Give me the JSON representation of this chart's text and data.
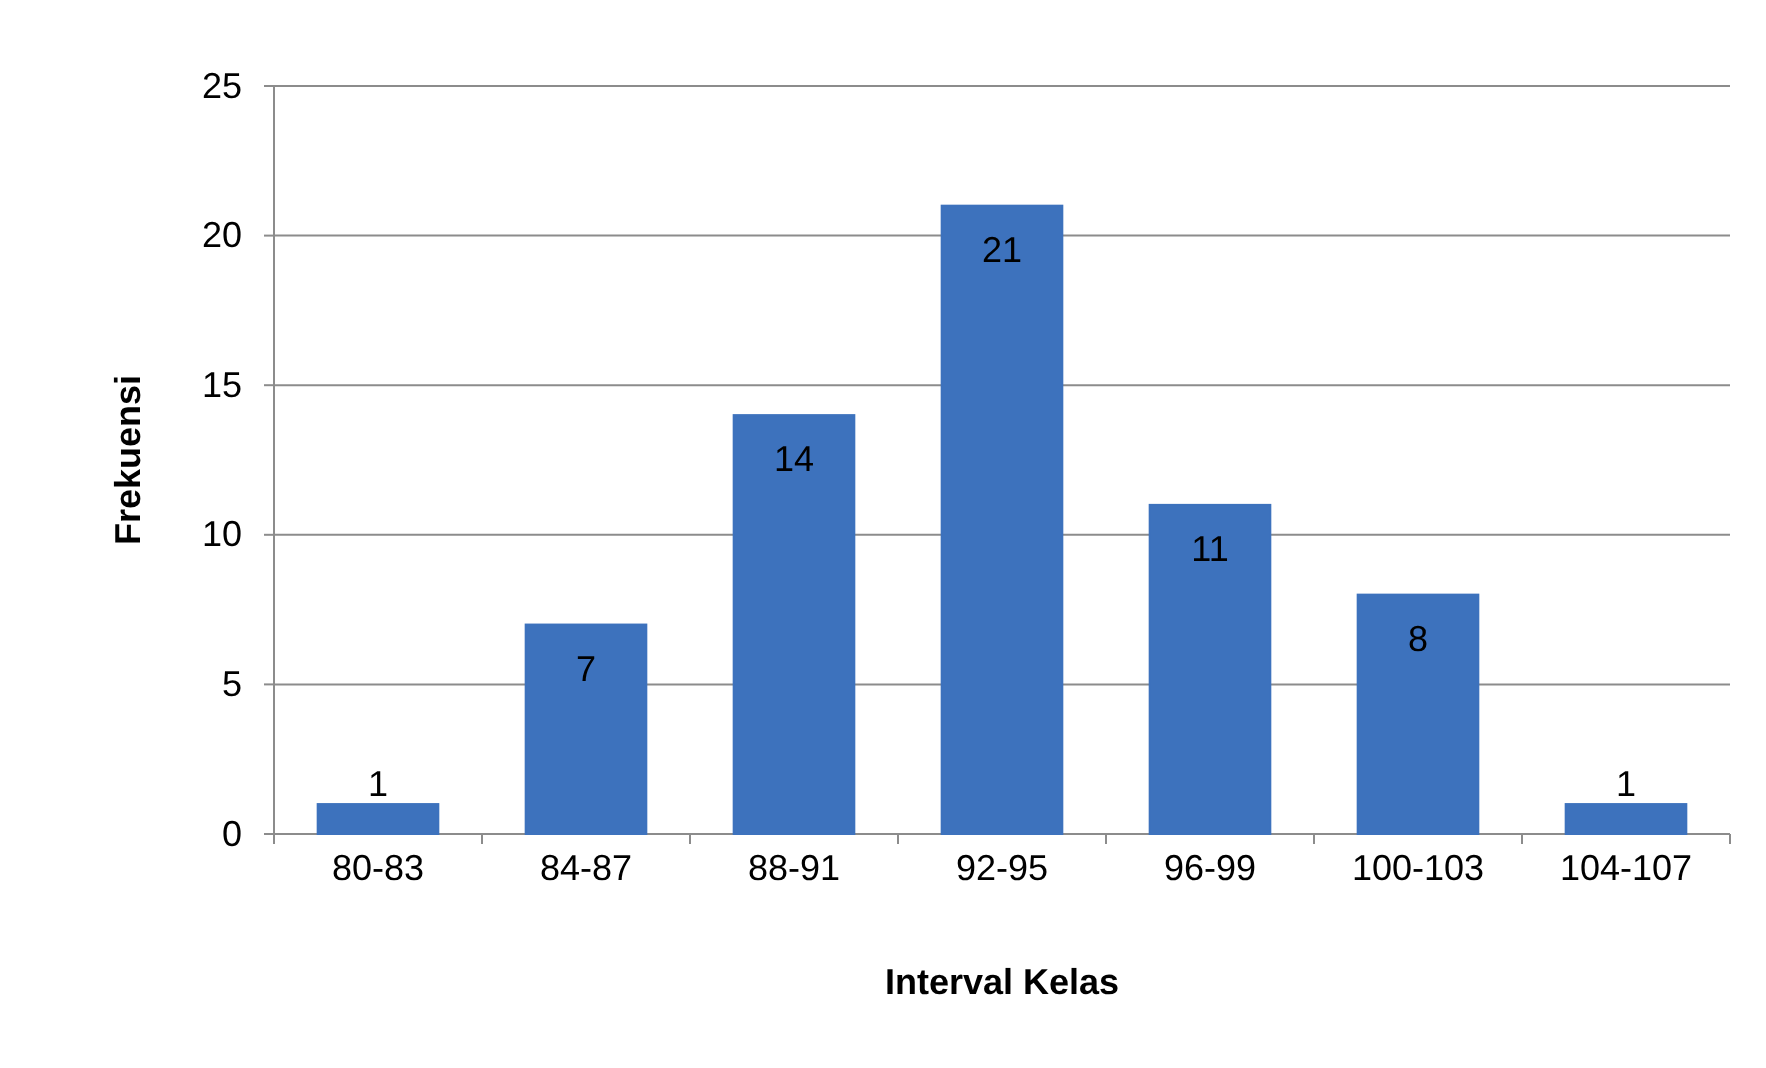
{
  "chart_data": {
    "type": "bar",
    "xlabel": "Interval Kelas",
    "ylabel": "Frekuensi",
    "categories": [
      "80-83",
      "84-87",
      "88-91",
      "92-95",
      "96-99",
      "100-103",
      "104-107"
    ],
    "values": [
      1,
      7,
      14,
      21,
      11,
      8,
      1
    ],
    "color": "#3d72bd",
    "ylim": [
      0,
      25
    ],
    "yticks": [
      0,
      5,
      10,
      15,
      20,
      25
    ],
    "grid": "y",
    "data_labels": true
  }
}
